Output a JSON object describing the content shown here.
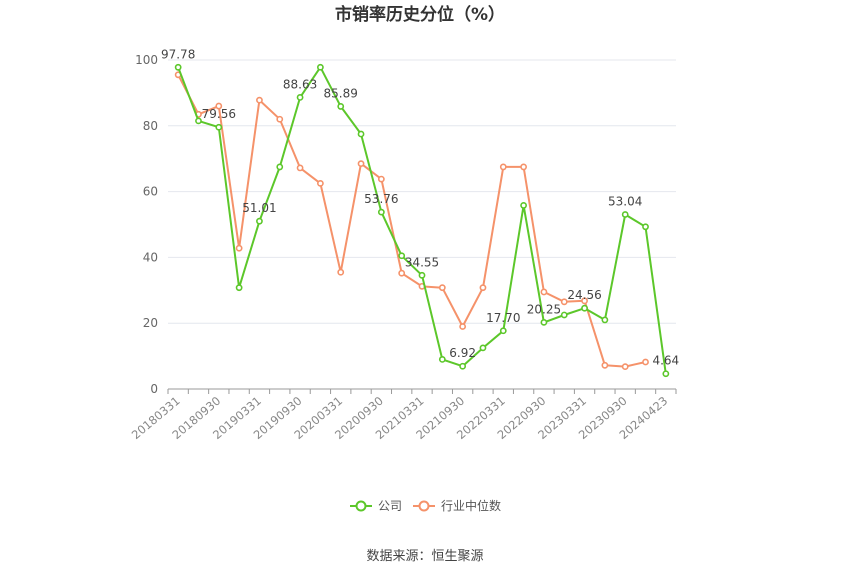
{
  "chart_data": {
    "type": "line",
    "title": "市销率历史分位（%）",
    "xlabel": "",
    "ylabel": "",
    "ylim": [
      0,
      100
    ],
    "yticks": [
      0,
      20,
      40,
      60,
      80,
      100
    ],
    "grid": true,
    "legend_position": "bottom",
    "x": [
      "20180331",
      "20180630",
      "20180930",
      "20181231",
      "20190331",
      "20190630",
      "20190930",
      "20191231",
      "20200331",
      "20200630",
      "20200930",
      "20201231",
      "20210331",
      "20210630",
      "20210930",
      "20211231",
      "20220331",
      "20220630",
      "20220930",
      "20221231",
      "20230331",
      "20230630",
      "20230930",
      "20231231",
      "20240423"
    ],
    "x_tick_labels": [
      "20180331",
      "20180930",
      "20190331",
      "20190930",
      "20200331",
      "20200930",
      "20210331",
      "20210930",
      "20220331",
      "20220930",
      "20230331",
      "20230930",
      "20240423"
    ],
    "series": [
      {
        "name": "公司",
        "color": "#5cc72a",
        "values": [
          97.78,
          81.5,
          79.56,
          30.8,
          51.01,
          67.5,
          88.63,
          97.8,
          85.89,
          77.5,
          53.76,
          40.5,
          34.55,
          9.0,
          6.92,
          12.5,
          17.7,
          55.8,
          20.25,
          22.5,
          24.56,
          21.0,
          53.04,
          49.3,
          4.64
        ],
        "labeled_points": [
          {
            "index": 0,
            "text": "97.78"
          },
          {
            "index": 2,
            "text": "79.56"
          },
          {
            "index": 4,
            "text": "51.01"
          },
          {
            "index": 6,
            "text": "88.63"
          },
          {
            "index": 8,
            "text": "85.89"
          },
          {
            "index": 10,
            "text": "53.76"
          },
          {
            "index": 12,
            "text": "34.55"
          },
          {
            "index": 14,
            "text": "6.92"
          },
          {
            "index": 16,
            "text": "17.70"
          },
          {
            "index": 18,
            "text": "20.25"
          },
          {
            "index": 20,
            "text": "24.56"
          },
          {
            "index": 22,
            "text": "53.04"
          },
          {
            "index": 24,
            "text": "4.64"
          }
        ]
      },
      {
        "name": "行业中位数",
        "color": "#f5926a",
        "values": [
          95.5,
          83.5,
          86.0,
          42.8,
          87.8,
          82.0,
          67.2,
          62.5,
          35.5,
          68.5,
          63.8,
          35.2,
          31.2,
          30.8,
          19.0,
          30.8,
          67.5,
          67.5,
          29.5,
          26.5,
          26.8,
          7.2,
          6.8,
          8.2,
          null
        ]
      }
    ]
  },
  "footer": {
    "source": "数据来源：恒生聚源"
  }
}
